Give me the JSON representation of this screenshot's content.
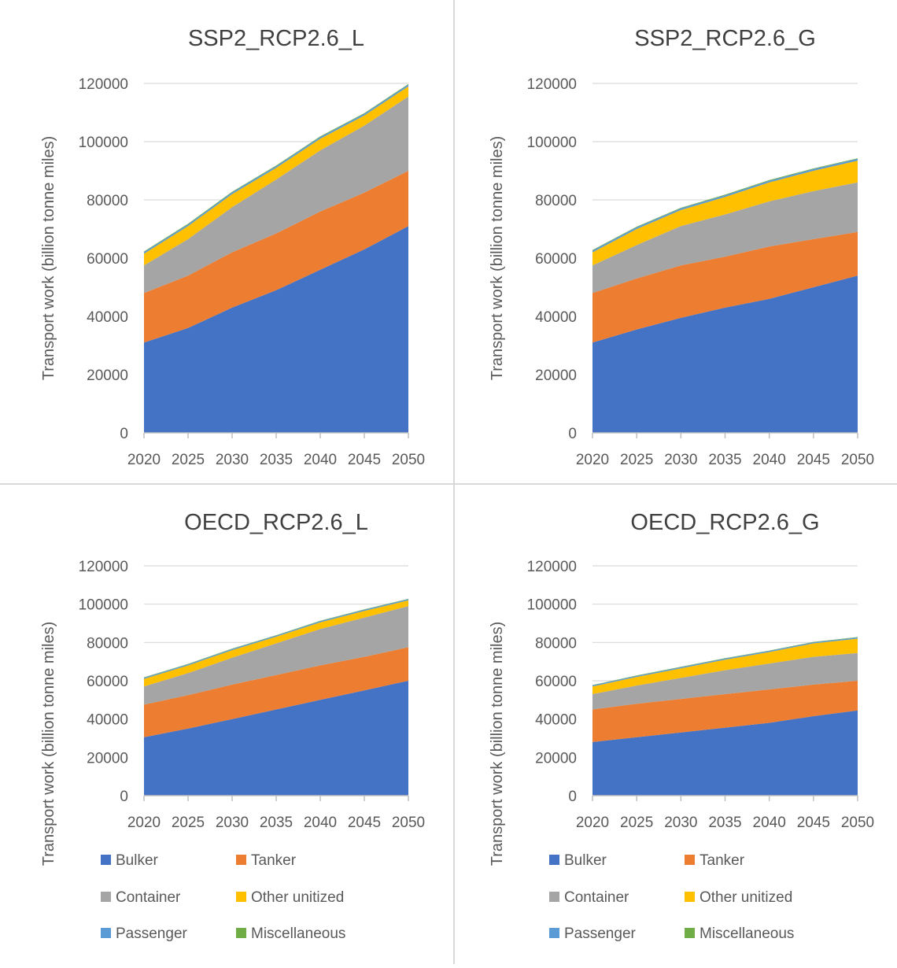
{
  "legend_colors": {
    "Bulker": "#4472C4",
    "Tanker": "#ED7D31",
    "Container": "#A5A5A5",
    "Other unitized": "#FFC000",
    "Passenger": "#5B9BD5",
    "Miscellaneous": "#70AD47"
  },
  "chart_data": [
    {
      "type": "area",
      "stacked": true,
      "title": "SSP2_RCP2.6_L",
      "ylabel": "Transport work (billion tonne miles)",
      "xlabel": "",
      "x": [
        "2020",
        "2025",
        "2030",
        "2035",
        "2040",
        "2045",
        "2050"
      ],
      "ylim": [
        0,
        120000
      ],
      "yticks": [
        0,
        20000,
        40000,
        60000,
        80000,
        100000,
        120000
      ],
      "grid": true,
      "legend": "none",
      "series": [
        {
          "name": "Bulker",
          "values": [
            31000,
            36000,
            43000,
            49000,
            56000,
            63000,
            71000
          ]
        },
        {
          "name": "Tanker",
          "values": [
            17000,
            18000,
            19000,
            19500,
            20000,
            19500,
            19000
          ]
        },
        {
          "name": "Container",
          "values": [
            9500,
            12500,
            15500,
            18500,
            21000,
            23000,
            25500
          ]
        },
        {
          "name": "Other unitized",
          "values": [
            4000,
            4500,
            4500,
            4000,
            4000,
            3500,
            3500
          ]
        },
        {
          "name": "Passenger",
          "values": [
            600,
            600,
            600,
            600,
            600,
            600,
            600
          ]
        },
        {
          "name": "Miscellaneous",
          "values": [
            200,
            200,
            200,
            200,
            200,
            200,
            200
          ]
        }
      ]
    },
    {
      "type": "area",
      "stacked": true,
      "title": "SSP2_RCP2.6_G",
      "ylabel": "Transport work (billion tonne miles)",
      "xlabel": "",
      "x": [
        "2020",
        "2025",
        "2030",
        "2035",
        "2040",
        "2045",
        "2050"
      ],
      "ylim": [
        0,
        120000
      ],
      "yticks": [
        0,
        20000,
        40000,
        60000,
        80000,
        100000,
        120000
      ],
      "grid": true,
      "legend": "none",
      "series": [
        {
          "name": "Bulker",
          "values": [
            31000,
            35500,
            39500,
            43000,
            46000,
            50000,
            54000
          ]
        },
        {
          "name": "Tanker",
          "values": [
            17000,
            17500,
            18000,
            17500,
            18000,
            16500,
            15000
          ]
        },
        {
          "name": "Container",
          "values": [
            9500,
            11500,
            13500,
            14500,
            15500,
            16500,
            17000
          ]
        },
        {
          "name": "Other unitized",
          "values": [
            4500,
            5500,
            5500,
            6000,
            6500,
            7000,
            7500
          ]
        },
        {
          "name": "Passenger",
          "values": [
            600,
            600,
            600,
            600,
            600,
            600,
            600
          ]
        },
        {
          "name": "Miscellaneous",
          "values": [
            200,
            200,
            200,
            200,
            200,
            200,
            200
          ]
        }
      ]
    },
    {
      "type": "area",
      "stacked": true,
      "title": "OECD_RCP2.6_L",
      "ylabel": "Transport work (billion tonne miles)",
      "xlabel": "",
      "x": [
        "2020",
        "2025",
        "2030",
        "2035",
        "2040",
        "2045",
        "2050"
      ],
      "ylim": [
        0,
        120000
      ],
      "yticks": [
        0,
        20000,
        40000,
        60000,
        80000,
        100000,
        120000
      ],
      "grid": true,
      "legend": "bottom",
      "series": [
        {
          "name": "Bulker",
          "values": [
            30500,
            35000,
            40000,
            45000,
            50000,
            55000,
            60000
          ]
        },
        {
          "name": "Tanker",
          "values": [
            17000,
            17500,
            18000,
            18000,
            18000,
            17500,
            17500
          ]
        },
        {
          "name": "Container",
          "values": [
            9500,
            11500,
            14000,
            16500,
            19000,
            20500,
            21500
          ]
        },
        {
          "name": "Other unitized",
          "values": [
            4000,
            4000,
            4000,
            3500,
            3500,
            3500,
            3000
          ]
        },
        {
          "name": "Passenger",
          "values": [
            600,
            600,
            600,
            600,
            600,
            600,
            600
          ]
        },
        {
          "name": "Miscellaneous",
          "values": [
            200,
            200,
            200,
            200,
            200,
            200,
            200
          ]
        }
      ]
    },
    {
      "type": "area",
      "stacked": true,
      "title": "OECD_RCP2.6_G",
      "ylabel": "Transport work (billion tonne miles)",
      "xlabel": "",
      "x": [
        "2020",
        "2025",
        "2030",
        "2035",
        "2040",
        "2045",
        "2050"
      ],
      "ylim": [
        0,
        120000
      ],
      "yticks": [
        0,
        20000,
        40000,
        60000,
        80000,
        100000,
        120000
      ],
      "grid": true,
      "legend": "bottom",
      "series": [
        {
          "name": "Bulker",
          "values": [
            28000,
            30500,
            33000,
            35500,
            38000,
            41500,
            44500
          ]
        },
        {
          "name": "Tanker",
          "values": [
            17000,
            17500,
            17500,
            17500,
            17500,
            16500,
            15500
          ]
        },
        {
          "name": "Container",
          "values": [
            8000,
            9500,
            11000,
            12500,
            13500,
            14500,
            14500
          ]
        },
        {
          "name": "Other unitized",
          "values": [
            4000,
            4500,
            5000,
            5500,
            6000,
            7000,
            7500
          ]
        },
        {
          "name": "Passenger",
          "values": [
            600,
            600,
            600,
            600,
            600,
            600,
            600
          ]
        },
        {
          "name": "Miscellaneous",
          "values": [
            200,
            200,
            200,
            200,
            200,
            200,
            200
          ]
        }
      ]
    }
  ]
}
